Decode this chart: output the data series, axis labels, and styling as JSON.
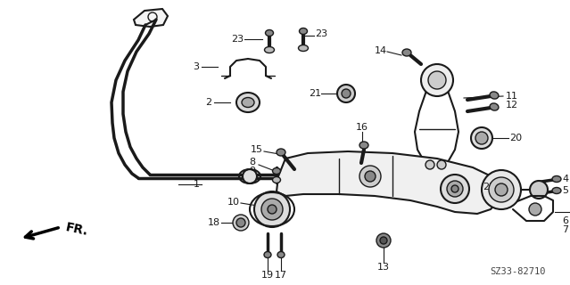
{
  "part_number": "SZ33-82710",
  "background_color": "#ffffff",
  "line_color": "#1a1a1a",
  "figsize": [
    6.39,
    3.2
  ],
  "dpi": 100,
  "label_fontsize": 8.0,
  "label_fontsize_small": 7.5
}
